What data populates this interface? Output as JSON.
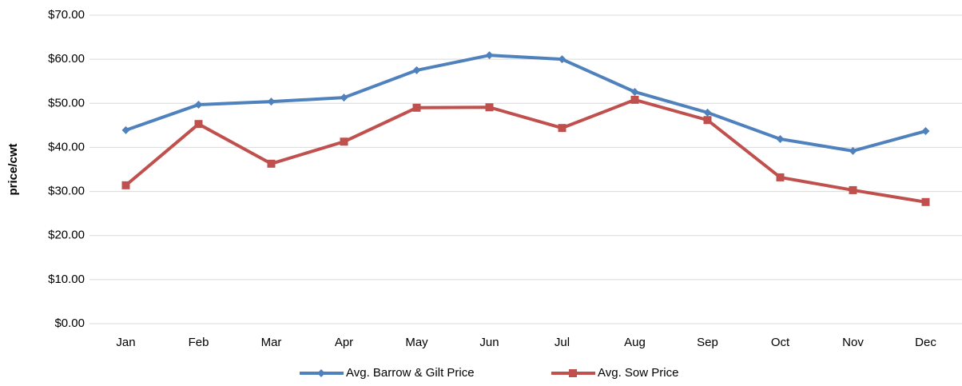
{
  "chart_data": {
    "type": "line",
    "y_label": "price/cwt",
    "categories": [
      "Jan",
      "Feb",
      "Mar",
      "Apr",
      "May",
      "Jun",
      "Jul",
      "Aug",
      "Sep",
      "Oct",
      "Nov",
      "Dec"
    ],
    "series": [
      {
        "name": "Avg. Barrow & Gilt Price",
        "color": "#4f81bd",
        "marker": "diamond",
        "values": [
          43.9,
          49.7,
          50.4,
          51.3,
          57.5,
          60.9,
          60.0,
          52.6,
          47.9,
          41.9,
          39.2,
          43.7
        ]
      },
      {
        "name": "Avg. Sow Price",
        "color": "#c0504d",
        "marker": "square",
        "values": [
          31.4,
          45.3,
          36.3,
          41.3,
          49.0,
          49.1,
          44.4,
          50.8,
          46.2,
          33.2,
          30.3,
          27.6
        ]
      }
    ],
    "ylim": [
      0,
      70
    ],
    "yticks": [
      {
        "value": 0,
        "label": "$0.00"
      },
      {
        "value": 10,
        "label": "$10.00"
      },
      {
        "value": 20,
        "label": "$20.00"
      },
      {
        "value": 30,
        "label": "$30.00"
      },
      {
        "value": 40,
        "label": "$40.00"
      },
      {
        "value": 50,
        "label": "$50.00"
      },
      {
        "value": 60,
        "label": "$60.00"
      },
      {
        "value": 70,
        "label": "$70.00"
      }
    ],
    "grid": true,
    "legend": "bottom"
  }
}
